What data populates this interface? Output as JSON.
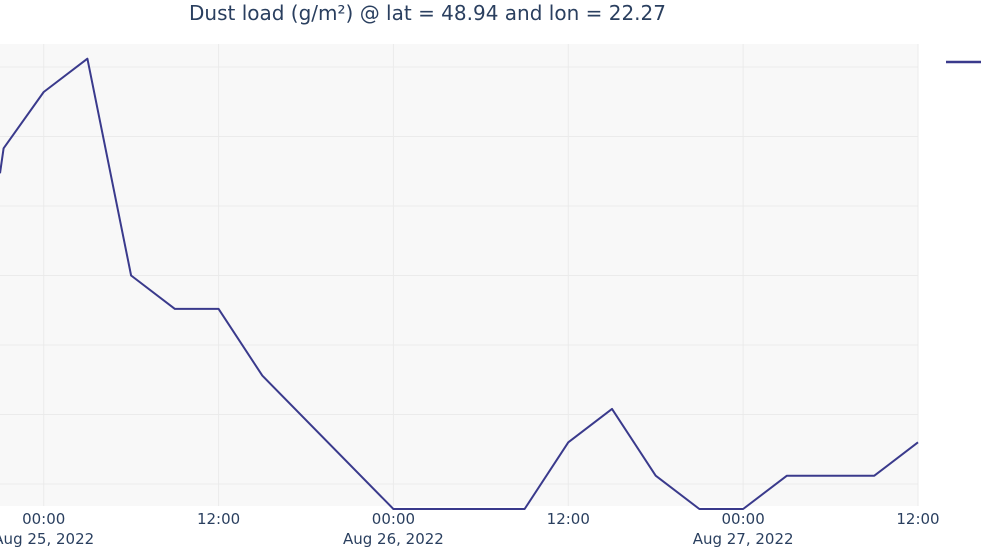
{
  "chart_data": {
    "type": "line",
    "title": "Dust load (g/m²) @ lat = 48.94 and lon = 22.27",
    "xlabel": "",
    "ylabel": "",
    "grid": true,
    "legend_placement": "top-right",
    "x_ticks": [
      {
        "x": "2022-08-25 00:00",
        "time": "00:00",
        "date": "Aug 25, 2022"
      },
      {
        "x": "2022-08-25 12:00",
        "time": "12:00",
        "date": ""
      },
      {
        "x": "2022-08-26 00:00",
        "time": "00:00",
        "date": "Aug 26, 2022"
      },
      {
        "x": "2022-08-26 12:00",
        "time": "12:00",
        "date": ""
      },
      {
        "x": "2022-08-27 00:00",
        "time": "00:00",
        "date": "Aug 27, 2022"
      },
      {
        "x": "2022-08-27 12:00",
        "time": "12:00",
        "date": ""
      }
    ],
    "xlim": [
      "2022-08-24 21:00",
      "2022-08-27 12:00"
    ],
    "ylim": [
      0,
      1
    ],
    "series": [
      {
        "color": "#3a3a8c",
        "points": [
          {
            "x": "2022-08-24 21:00",
            "y": 0.745
          },
          {
            "x": "2022-08-24 21:15",
            "y": 0.805
          },
          {
            "x": "2022-08-25 00:00",
            "y": 0.94
          },
          {
            "x": "2022-08-25 03:00",
            "y": 1.02
          },
          {
            "x": "2022-08-25 06:00",
            "y": 0.5
          },
          {
            "x": "2022-08-25 09:00",
            "y": 0.42
          },
          {
            "x": "2022-08-25 12:00",
            "y": 0.42
          },
          {
            "x": "2022-08-25 15:00",
            "y": 0.26
          },
          {
            "x": "2022-08-26 00:00",
            "y": -0.06
          },
          {
            "x": "2022-08-26 09:00",
            "y": -0.06
          },
          {
            "x": "2022-08-26 12:00",
            "y": 0.1
          },
          {
            "x": "2022-08-26 15:00",
            "y": 0.18
          },
          {
            "x": "2022-08-26 18:00",
            "y": 0.02
          },
          {
            "x": "2022-08-26 21:00",
            "y": -0.06
          },
          {
            "x": "2022-08-27 00:00",
            "y": -0.06
          },
          {
            "x": "2022-08-27 03:00",
            "y": 0.02
          },
          {
            "x": "2022-08-27 09:00",
            "y": 0.02
          },
          {
            "x": "2022-08-27 12:00",
            "y": 0.1
          }
        ]
      }
    ]
  }
}
